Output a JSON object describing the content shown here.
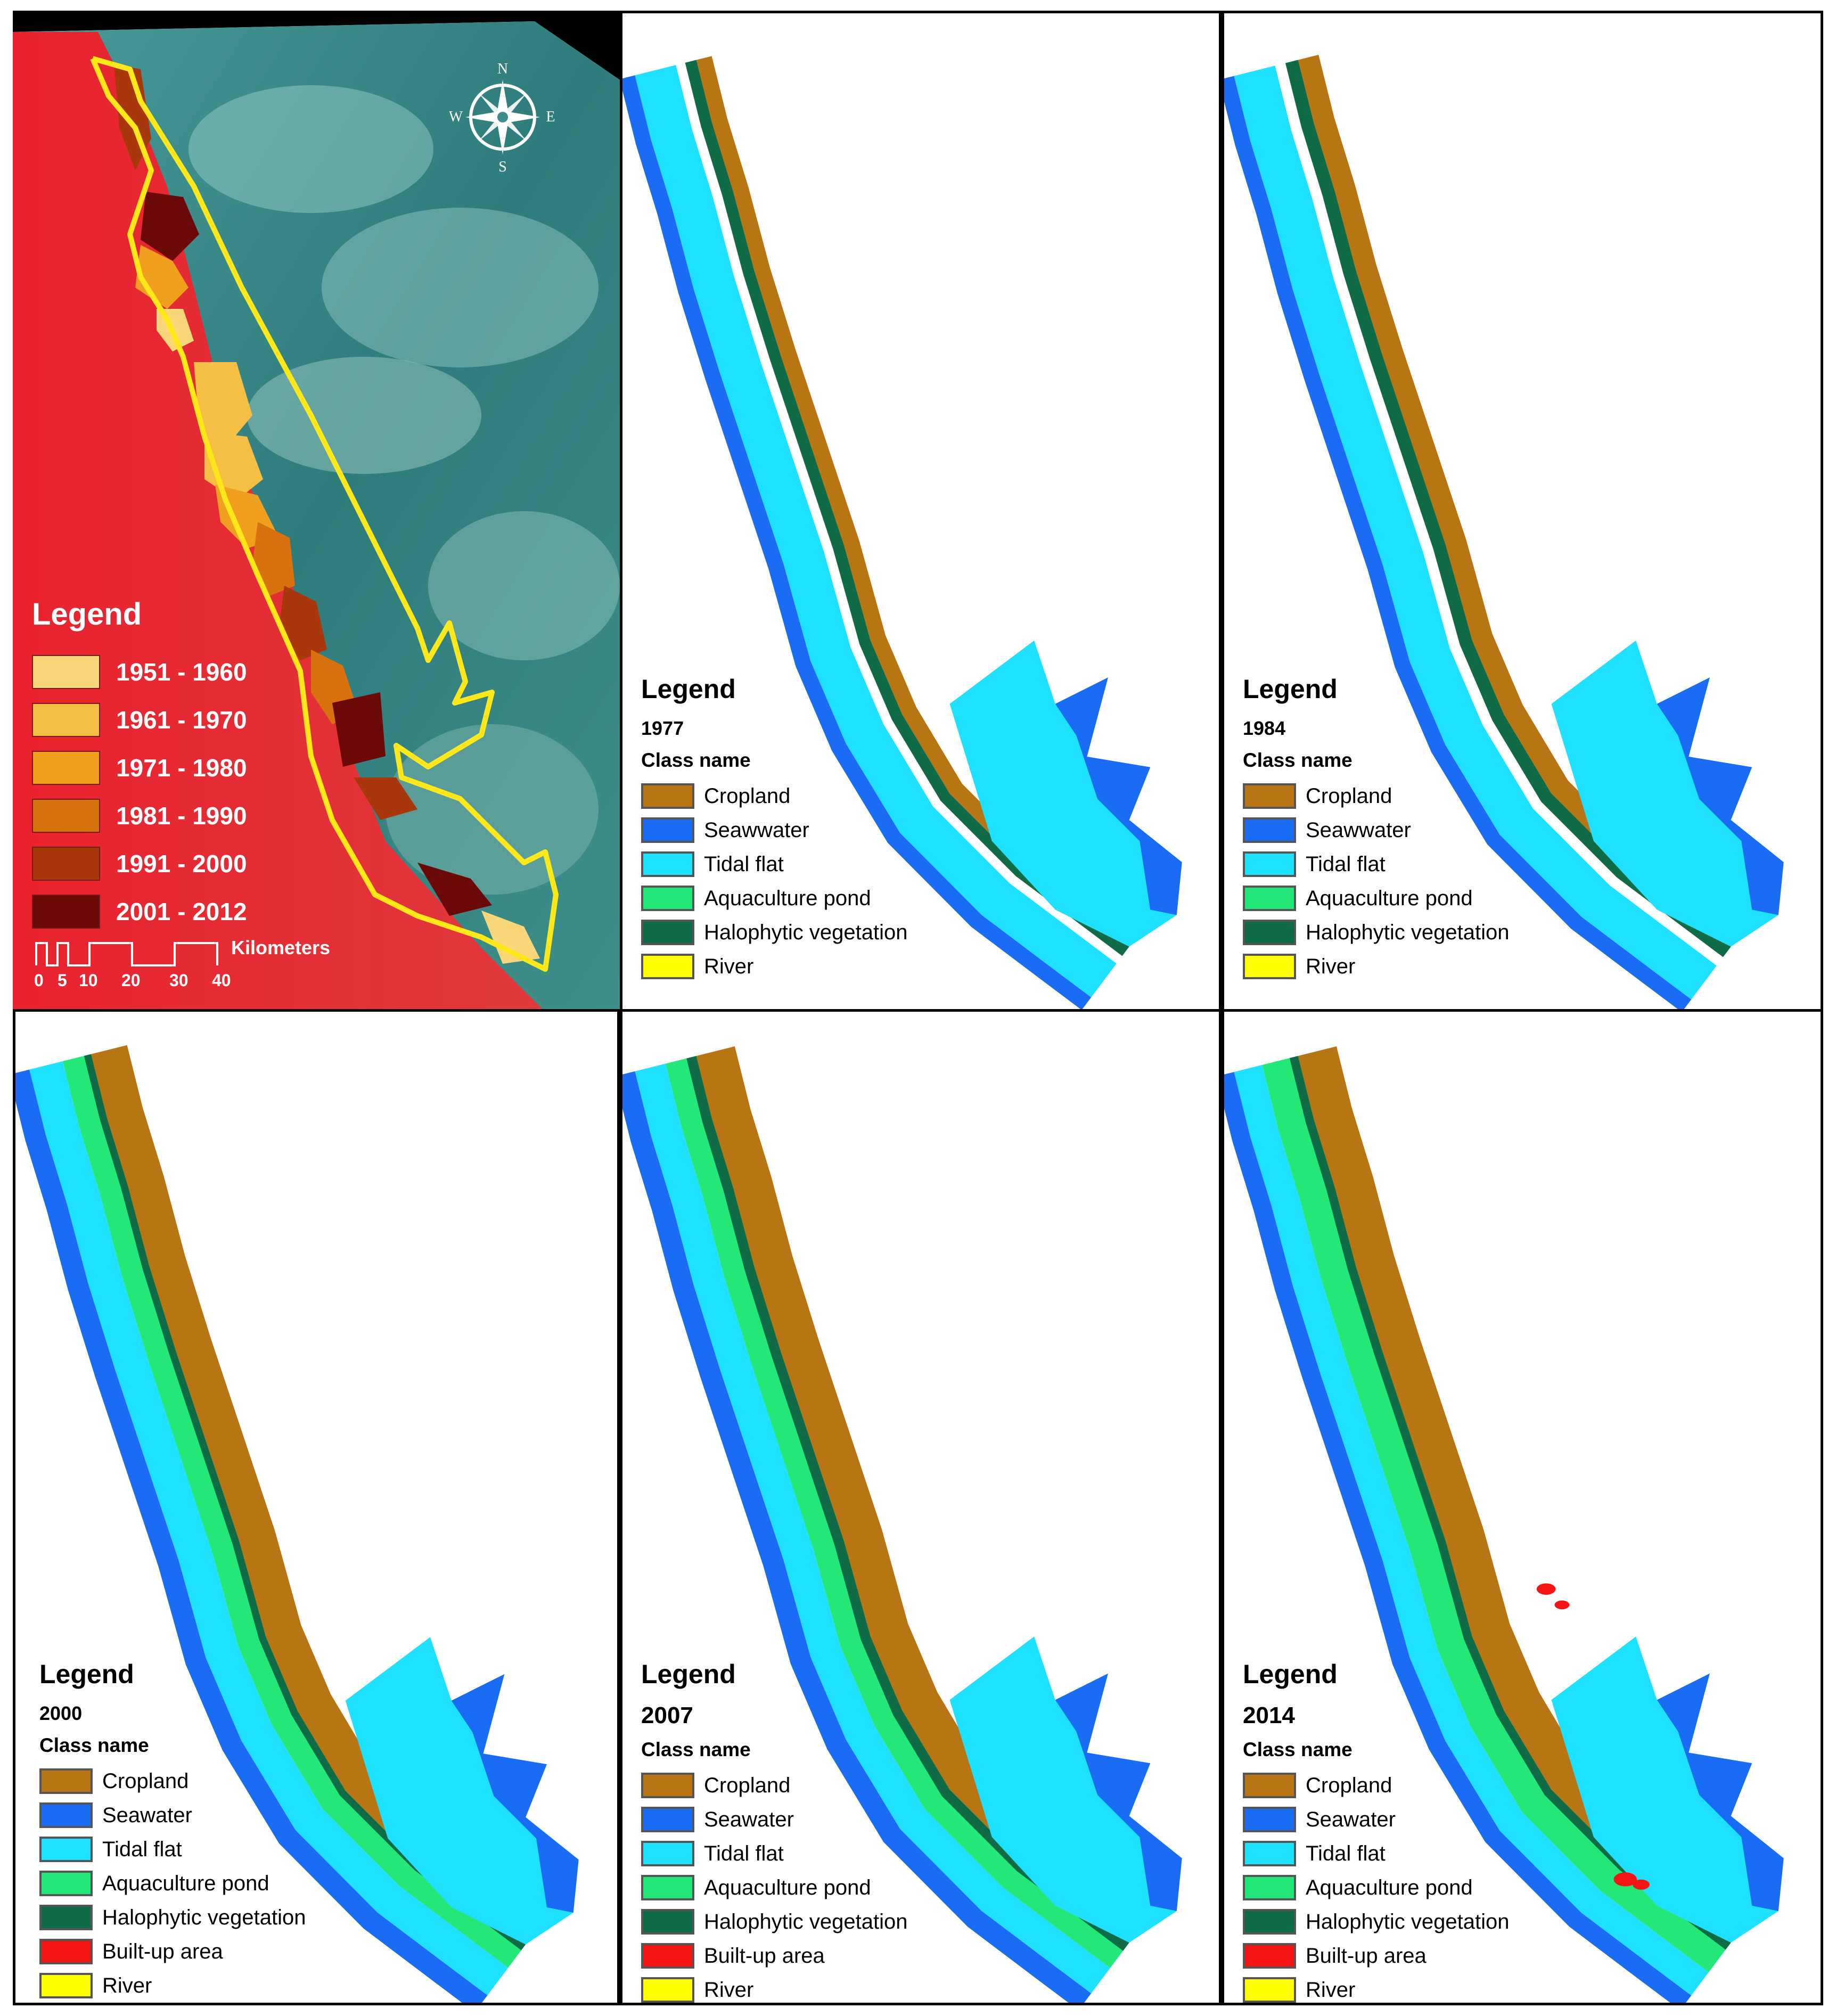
{
  "colors": {
    "cropland": "#b87514",
    "seawater": "#1a6cf5",
    "tidal_flat": "#1ee0ff",
    "aquaculture": "#23e878",
    "halophytic": "#0f6b45",
    "built_up": "#f51414",
    "river": "#ffff00",
    "satellite_land": "#e8222e",
    "satellite_sea": "#3d8e8c",
    "coastline": "#ffe81a"
  },
  "satellite_panel": {
    "compass_labels": {
      "n": "N",
      "s": "S",
      "e": "E",
      "w": "W"
    },
    "legend_title": "Legend",
    "periods": [
      {
        "label": "1951 - 1960",
        "color": "#f7d77a"
      },
      {
        "label": "1961 - 1970",
        "color": "#f5bf45"
      },
      {
        "label": "1971 - 1980",
        "color": "#f0a01e"
      },
      {
        "label": "1981 - 1990",
        "color": "#d7720f"
      },
      {
        "label": "1991 - 2000",
        "color": "#a8380b"
      },
      {
        "label": "2001 - 2012",
        "color": "#6b0808"
      }
    ],
    "scale_unit": "Kilometers",
    "scale_ticks": [
      "0",
      "5",
      "10",
      "20",
      "30",
      "40"
    ]
  },
  "maps": [
    {
      "legend_title": "Legend",
      "year": "1977",
      "class_heading": "Class name",
      "classes": [
        {
          "label": "Cropland",
          "color_key": "cropland"
        },
        {
          "label": "Seawwater",
          "color_key": "seawater"
        },
        {
          "label": "Tidal flat",
          "color_key": "tidal_flat"
        },
        {
          "label": "Aquaculture pond",
          "color_key": "aquaculture"
        },
        {
          "label": "Halophytic vegetation",
          "color_key": "halophytic"
        },
        {
          "label": "River",
          "color_key": "river"
        }
      ]
    },
    {
      "legend_title": "Legend",
      "year": "1984",
      "class_heading": "Class name",
      "classes": [
        {
          "label": "Cropland",
          "color_key": "cropland"
        },
        {
          "label": "Seawwater",
          "color_key": "seawater"
        },
        {
          "label": "Tidal flat",
          "color_key": "tidal_flat"
        },
        {
          "label": "Aquaculture pond",
          "color_key": "aquaculture"
        },
        {
          "label": "Halophytic vegetation",
          "color_key": "halophytic"
        },
        {
          "label": "River",
          "color_key": "river"
        }
      ]
    },
    {
      "legend_title": "Legend",
      "year": "2000",
      "class_heading": "Class name",
      "classes": [
        {
          "label": "Cropland",
          "color_key": "cropland"
        },
        {
          "label": "Seawater",
          "color_key": "seawater"
        },
        {
          "label": "Tidal flat",
          "color_key": "tidal_flat"
        },
        {
          "label": "Aquaculture pond",
          "color_key": "aquaculture"
        },
        {
          "label": "Halophytic vegetation",
          "color_key": "halophytic"
        },
        {
          "label": "Built-up area",
          "color_key": "built_up"
        },
        {
          "label": "River",
          "color_key": "river"
        }
      ]
    },
    {
      "legend_title": "Legend",
      "year": "2007",
      "class_heading": "Class name",
      "classes": [
        {
          "label": "Cropland",
          "color_key": "cropland"
        },
        {
          "label": "Seawater",
          "color_key": "seawater"
        },
        {
          "label": "Tidal flat",
          "color_key": "tidal_flat"
        },
        {
          "label": "Aquaculture pond",
          "color_key": "aquaculture"
        },
        {
          "label": "Halophytic vegetation",
          "color_key": "halophytic"
        },
        {
          "label": "Built-up area",
          "color_key": "built_up"
        },
        {
          "label": "River",
          "color_key": "river"
        }
      ]
    },
    {
      "legend_title": "Legend",
      "year": "2014",
      "class_heading": "Class name",
      "classes": [
        {
          "label": "Cropland",
          "color_key": "cropland"
        },
        {
          "label": "Seawater",
          "color_key": "seawater"
        },
        {
          "label": "Tidal flat",
          "color_key": "tidal_flat"
        },
        {
          "label": "Aquaculture pond",
          "color_key": "aquaculture"
        },
        {
          "label": "Halophytic vegetation",
          "color_key": "halophytic"
        },
        {
          "label": "Built-up area",
          "color_key": "built_up"
        },
        {
          "label": "River",
          "color_key": "river"
        }
      ]
    }
  ]
}
